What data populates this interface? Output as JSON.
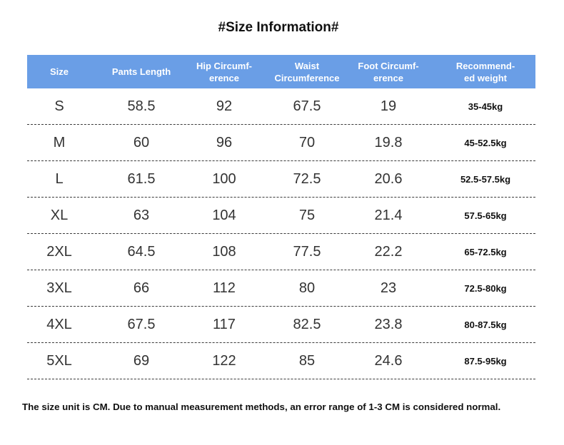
{
  "title": "#Size Information#",
  "headers": {
    "size": "Size",
    "pants_length": "Pants Length",
    "hip": "Hip Circumf-\nerence",
    "waist": "Waist\nCircumference",
    "foot": "Foot Circumf-\nerence",
    "weight": "Recommend-\ned weight"
  },
  "rows": [
    {
      "size": "S",
      "pants_length": "58.5",
      "hip": "92",
      "waist": "67.5",
      "foot": "19",
      "weight": "35-45kg"
    },
    {
      "size": "M",
      "pants_length": "60",
      "hip": "96",
      "waist": "70",
      "foot": "19.8",
      "weight": "45-52.5kg"
    },
    {
      "size": "L",
      "pants_length": "61.5",
      "hip": "100",
      "waist": "72.5",
      "foot": "20.6",
      "weight": "52.5-57.5kg"
    },
    {
      "size": "XL",
      "pants_length": "63",
      "hip": "104",
      "waist": "75",
      "foot": "21.4",
      "weight": "57.5-65kg"
    },
    {
      "size": "2XL",
      "pants_length": "64.5",
      "hip": "108",
      "waist": "77.5",
      "foot": "22.2",
      "weight": "65-72.5kg"
    },
    {
      "size": "3XL",
      "pants_length": "66",
      "hip": "112",
      "waist": "80",
      "foot": "23",
      "weight": "72.5-80kg"
    },
    {
      "size": "4XL",
      "pants_length": "67.5",
      "hip": "117",
      "waist": "82.5",
      "foot": "23.8",
      "weight": "80-87.5kg"
    },
    {
      "size": "5XL",
      "pants_length": "69",
      "hip": "122",
      "waist": "85",
      "foot": "24.6",
      "weight": "87.5-95kg"
    }
  ],
  "note": "The size unit is CM. Due to manual measurement methods, an error range of 1-3 CM is considered normal.",
  "colors": {
    "header_bg": "#6a9ee6",
    "header_text": "#ffffff"
  }
}
